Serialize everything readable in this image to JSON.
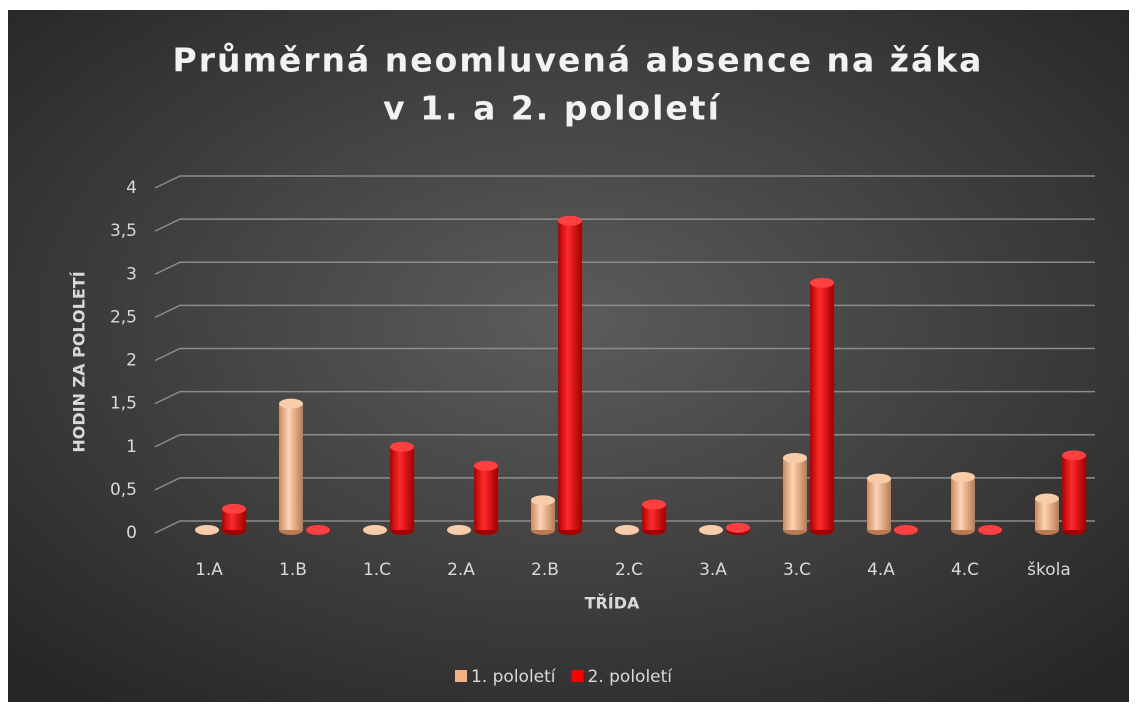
{
  "chart_data": {
    "type": "bar",
    "title": [
      "Průměrná neomluvená absence na žáka",
      "v 1. a 2. pololetí"
    ],
    "x_label": "TŘÍDA",
    "y_label": "HODIN ZA POLOLETÍ",
    "categories": [
      "1.A",
      "1.B",
      "1.C",
      "2.A",
      "2.B",
      "2.C",
      "3.A",
      "3.C",
      "4.A",
      "4.C",
      "škola"
    ],
    "series": [
      {
        "name": "1. pololetí",
        "color": "#f4b183",
        "values": [
          0,
          1.5,
          0,
          0,
          0.38,
          0,
          0,
          0.87,
          0.63,
          0.65,
          0.4
        ]
      },
      {
        "name": "2. pololetí",
        "color": "#ff0000",
        "values": [
          0.28,
          0,
          1.0,
          0.78,
          3.62,
          0.33,
          0.06,
          2.9,
          0,
          0,
          0.9
        ]
      }
    ],
    "ylim": [
      0,
      4
    ],
    "yticks": [
      0,
      {
        "value": 0.5,
        "label": "0,5"
      },
      1,
      {
        "value": 1.5,
        "label": "1,5"
      },
      2,
      {
        "value": 2.5,
        "label": "2,5"
      },
      3,
      {
        "value": 3.5,
        "label": "3,5"
      },
      4
    ],
    "grid": true,
    "legend": "bottom"
  }
}
